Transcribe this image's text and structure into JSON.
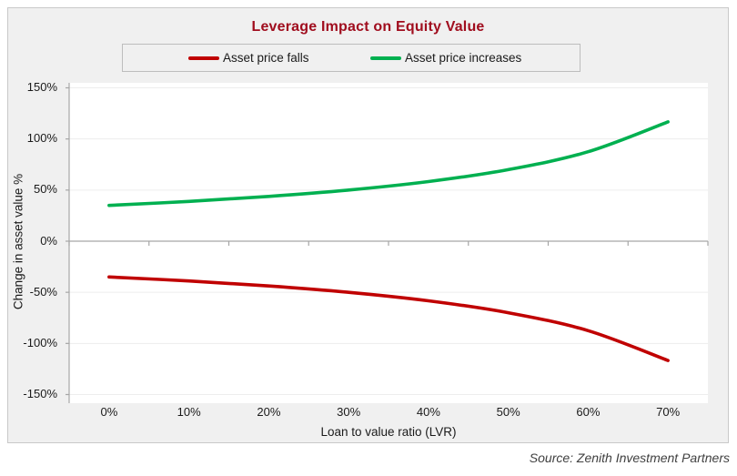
{
  "title": "Leverage Impact on Equity Value",
  "source": "Source: Zenith Investment Partners",
  "colors": {
    "title_text": "#A00D1E",
    "frame_bg": "#F0F0F0",
    "frame_border": "#C9C9C9",
    "plot_bg": "#FFFFFF",
    "gridline": "#EDEDED",
    "axis_line": "#A6A6A6",
    "tick_text": "#1A1A1A",
    "source_text": "#404040"
  },
  "chart_data": {
    "type": "line",
    "title": "Leverage Impact on Equity Value",
    "categories": [
      "0%",
      "10%",
      "20%",
      "30%",
      "40%",
      "50%",
      "60%",
      "70%"
    ],
    "series": [
      {
        "name": "Asset price falls",
        "color": "#C00000",
        "values": [
          -35,
          -38.9,
          -43.8,
          -50,
          -58.3,
          -70,
          -87.5,
          -116.7
        ]
      },
      {
        "name": "Asset price increases",
        "color": "#00B050",
        "values": [
          35,
          38.9,
          43.8,
          50,
          58.3,
          70,
          87.5,
          116.7
        ]
      }
    ],
    "xlabel": "Loan to value ratio (LVR)",
    "ylabel": "Change in asset value %",
    "ylim": [
      -150,
      150
    ],
    "yticks": [
      "150%",
      "100%",
      "50%",
      "0%",
      "-50%",
      "-100%",
      "-150%"
    ],
    "grid": true,
    "legend_position": "top",
    "smooth_lines": true
  }
}
